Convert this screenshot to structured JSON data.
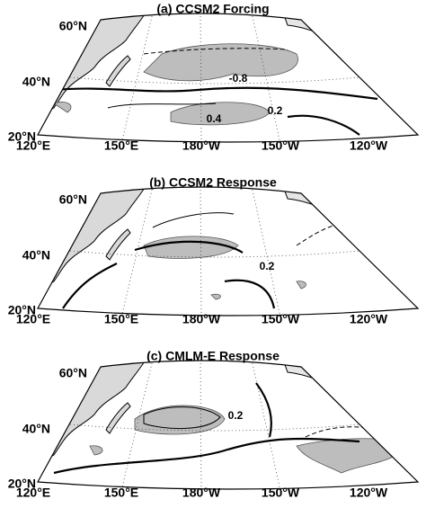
{
  "panels": [
    {
      "title": "(a) CCSM2 Forcing",
      "lat_labels": [
        "60°N",
        "40°N",
        "20°N"
      ],
      "lon_labels": [
        "120°E",
        "150°E",
        "180°W",
        "150°W",
        "120°W"
      ],
      "contour_labels": [
        "-0.8",
        "0.4",
        "0.2"
      ]
    },
    {
      "title": "(b) CCSM2 Response",
      "lat_labels": [
        "60°N",
        "40°N",
        "20°N"
      ],
      "lon_labels": [
        "120°E",
        "150°E",
        "180°W",
        "150°W",
        "120°W"
      ],
      "contour_labels": [
        "0.2"
      ]
    },
    {
      "title": "(c) CMLM-E Response",
      "lat_labels": [
        "60°N",
        "40°N",
        "20°N"
      ],
      "lon_labels": [
        "120°E",
        "150°E",
        "180°W",
        "150°W",
        "120°W"
      ],
      "contour_labels": [
        "0.2"
      ]
    }
  ]
}
